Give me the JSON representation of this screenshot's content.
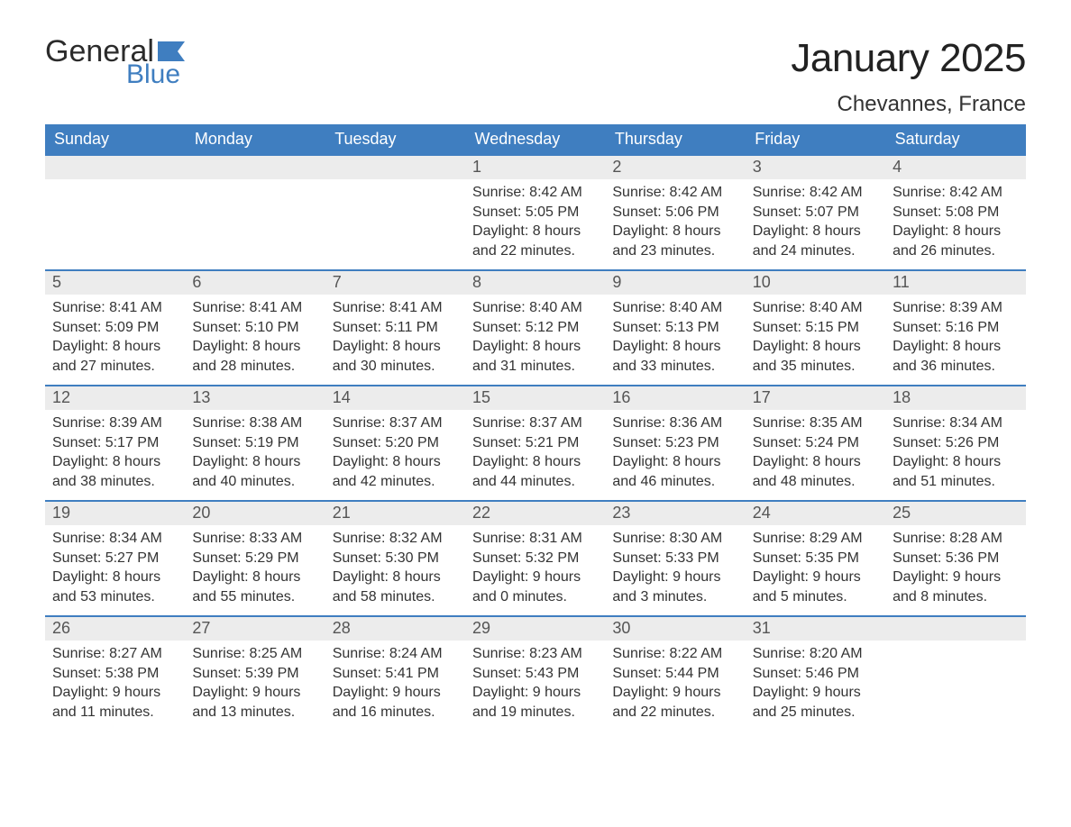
{
  "logo": {
    "text1": "General",
    "text2": "Blue",
    "flag_color": "#3f7ec0"
  },
  "title": "January 2025",
  "location": "Chevannes, France",
  "colors": {
    "header_bg": "#3f7ec0",
    "header_text": "#ffffff",
    "daynum_bg": "#ececec",
    "daynum_text": "#555555",
    "body_text": "#333333",
    "row_border": "#3f7ec0",
    "background": "#ffffff"
  },
  "typography": {
    "title_fontsize": 44,
    "location_fontsize": 24,
    "dayheader_fontsize": 18,
    "daynum_fontsize": 18,
    "cell_fontsize": 16
  },
  "day_headers": [
    "Sunday",
    "Monday",
    "Tuesday",
    "Wednesday",
    "Thursday",
    "Friday",
    "Saturday"
  ],
  "weeks": [
    [
      null,
      null,
      null,
      {
        "n": "1",
        "sunrise": "Sunrise: 8:42 AM",
        "sunset": "Sunset: 5:05 PM",
        "dl1": "Daylight: 8 hours",
        "dl2": "and 22 minutes."
      },
      {
        "n": "2",
        "sunrise": "Sunrise: 8:42 AM",
        "sunset": "Sunset: 5:06 PM",
        "dl1": "Daylight: 8 hours",
        "dl2": "and 23 minutes."
      },
      {
        "n": "3",
        "sunrise": "Sunrise: 8:42 AM",
        "sunset": "Sunset: 5:07 PM",
        "dl1": "Daylight: 8 hours",
        "dl2": "and 24 minutes."
      },
      {
        "n": "4",
        "sunrise": "Sunrise: 8:42 AM",
        "sunset": "Sunset: 5:08 PM",
        "dl1": "Daylight: 8 hours",
        "dl2": "and 26 minutes."
      }
    ],
    [
      {
        "n": "5",
        "sunrise": "Sunrise: 8:41 AM",
        "sunset": "Sunset: 5:09 PM",
        "dl1": "Daylight: 8 hours",
        "dl2": "and 27 minutes."
      },
      {
        "n": "6",
        "sunrise": "Sunrise: 8:41 AM",
        "sunset": "Sunset: 5:10 PM",
        "dl1": "Daylight: 8 hours",
        "dl2": "and 28 minutes."
      },
      {
        "n": "7",
        "sunrise": "Sunrise: 8:41 AM",
        "sunset": "Sunset: 5:11 PM",
        "dl1": "Daylight: 8 hours",
        "dl2": "and 30 minutes."
      },
      {
        "n": "8",
        "sunrise": "Sunrise: 8:40 AM",
        "sunset": "Sunset: 5:12 PM",
        "dl1": "Daylight: 8 hours",
        "dl2": "and 31 minutes."
      },
      {
        "n": "9",
        "sunrise": "Sunrise: 8:40 AM",
        "sunset": "Sunset: 5:13 PM",
        "dl1": "Daylight: 8 hours",
        "dl2": "and 33 minutes."
      },
      {
        "n": "10",
        "sunrise": "Sunrise: 8:40 AM",
        "sunset": "Sunset: 5:15 PM",
        "dl1": "Daylight: 8 hours",
        "dl2": "and 35 minutes."
      },
      {
        "n": "11",
        "sunrise": "Sunrise: 8:39 AM",
        "sunset": "Sunset: 5:16 PM",
        "dl1": "Daylight: 8 hours",
        "dl2": "and 36 minutes."
      }
    ],
    [
      {
        "n": "12",
        "sunrise": "Sunrise: 8:39 AM",
        "sunset": "Sunset: 5:17 PM",
        "dl1": "Daylight: 8 hours",
        "dl2": "and 38 minutes."
      },
      {
        "n": "13",
        "sunrise": "Sunrise: 8:38 AM",
        "sunset": "Sunset: 5:19 PM",
        "dl1": "Daylight: 8 hours",
        "dl2": "and 40 minutes."
      },
      {
        "n": "14",
        "sunrise": "Sunrise: 8:37 AM",
        "sunset": "Sunset: 5:20 PM",
        "dl1": "Daylight: 8 hours",
        "dl2": "and 42 minutes."
      },
      {
        "n": "15",
        "sunrise": "Sunrise: 8:37 AM",
        "sunset": "Sunset: 5:21 PM",
        "dl1": "Daylight: 8 hours",
        "dl2": "and 44 minutes."
      },
      {
        "n": "16",
        "sunrise": "Sunrise: 8:36 AM",
        "sunset": "Sunset: 5:23 PM",
        "dl1": "Daylight: 8 hours",
        "dl2": "and 46 minutes."
      },
      {
        "n": "17",
        "sunrise": "Sunrise: 8:35 AM",
        "sunset": "Sunset: 5:24 PM",
        "dl1": "Daylight: 8 hours",
        "dl2": "and 48 minutes."
      },
      {
        "n": "18",
        "sunrise": "Sunrise: 8:34 AM",
        "sunset": "Sunset: 5:26 PM",
        "dl1": "Daylight: 8 hours",
        "dl2": "and 51 minutes."
      }
    ],
    [
      {
        "n": "19",
        "sunrise": "Sunrise: 8:34 AM",
        "sunset": "Sunset: 5:27 PM",
        "dl1": "Daylight: 8 hours",
        "dl2": "and 53 minutes."
      },
      {
        "n": "20",
        "sunrise": "Sunrise: 8:33 AM",
        "sunset": "Sunset: 5:29 PM",
        "dl1": "Daylight: 8 hours",
        "dl2": "and 55 minutes."
      },
      {
        "n": "21",
        "sunrise": "Sunrise: 8:32 AM",
        "sunset": "Sunset: 5:30 PM",
        "dl1": "Daylight: 8 hours",
        "dl2": "and 58 minutes."
      },
      {
        "n": "22",
        "sunrise": "Sunrise: 8:31 AM",
        "sunset": "Sunset: 5:32 PM",
        "dl1": "Daylight: 9 hours",
        "dl2": "and 0 minutes."
      },
      {
        "n": "23",
        "sunrise": "Sunrise: 8:30 AM",
        "sunset": "Sunset: 5:33 PM",
        "dl1": "Daylight: 9 hours",
        "dl2": "and 3 minutes."
      },
      {
        "n": "24",
        "sunrise": "Sunrise: 8:29 AM",
        "sunset": "Sunset: 5:35 PM",
        "dl1": "Daylight: 9 hours",
        "dl2": "and 5 minutes."
      },
      {
        "n": "25",
        "sunrise": "Sunrise: 8:28 AM",
        "sunset": "Sunset: 5:36 PM",
        "dl1": "Daylight: 9 hours",
        "dl2": "and 8 minutes."
      }
    ],
    [
      {
        "n": "26",
        "sunrise": "Sunrise: 8:27 AM",
        "sunset": "Sunset: 5:38 PM",
        "dl1": "Daylight: 9 hours",
        "dl2": "and 11 minutes."
      },
      {
        "n": "27",
        "sunrise": "Sunrise: 8:25 AM",
        "sunset": "Sunset: 5:39 PM",
        "dl1": "Daylight: 9 hours",
        "dl2": "and 13 minutes."
      },
      {
        "n": "28",
        "sunrise": "Sunrise: 8:24 AM",
        "sunset": "Sunset: 5:41 PM",
        "dl1": "Daylight: 9 hours",
        "dl2": "and 16 minutes."
      },
      {
        "n": "29",
        "sunrise": "Sunrise: 8:23 AM",
        "sunset": "Sunset: 5:43 PM",
        "dl1": "Daylight: 9 hours",
        "dl2": "and 19 minutes."
      },
      {
        "n": "30",
        "sunrise": "Sunrise: 8:22 AM",
        "sunset": "Sunset: 5:44 PM",
        "dl1": "Daylight: 9 hours",
        "dl2": "and 22 minutes."
      },
      {
        "n": "31",
        "sunrise": "Sunrise: 8:20 AM",
        "sunset": "Sunset: 5:46 PM",
        "dl1": "Daylight: 9 hours",
        "dl2": "and 25 minutes."
      },
      null
    ]
  ]
}
